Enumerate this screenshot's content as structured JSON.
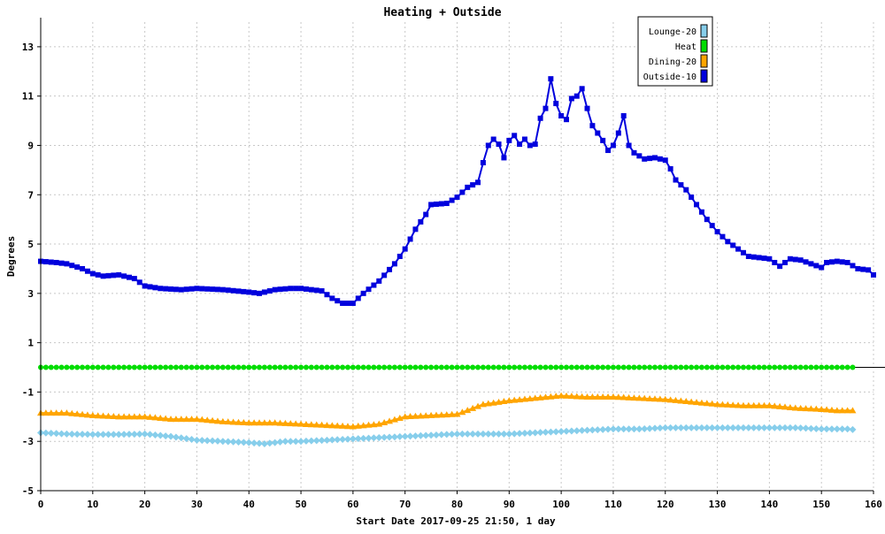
{
  "chart_data": {
    "type": "line",
    "title": "Heating + Outside",
    "xlabel": "Start Date 2017-09-25 21:50, 1 day",
    "ylabel": "Degrees",
    "xlim": [
      0,
      160
    ],
    "ylim": [
      -5,
      14
    ],
    "xticks": [
      0,
      10,
      20,
      30,
      40,
      50,
      60,
      70,
      80,
      90,
      100,
      110,
      120,
      130,
      140,
      150,
      160
    ],
    "yticks": [
      -5,
      -3,
      -1,
      1,
      3,
      5,
      7,
      9,
      11,
      13
    ],
    "grid": true,
    "zero_line": true,
    "legend_position": "top-right",
    "series": [
      {
        "name": "Lounge-20",
        "color": "#87ceeb",
        "marker": "diamond",
        "points": [
          [
            0,
            -2.65
          ],
          [
            5,
            -2.7
          ],
          [
            10,
            -2.72
          ],
          [
            15,
            -2.72
          ],
          [
            20,
            -2.7
          ],
          [
            25,
            -2.8
          ],
          [
            30,
            -2.95
          ],
          [
            35,
            -3.0
          ],
          [
            40,
            -3.05
          ],
          [
            43,
            -3.1
          ],
          [
            47,
            -3.0
          ],
          [
            50,
            -3.0
          ],
          [
            55,
            -2.95
          ],
          [
            60,
            -2.9
          ],
          [
            65,
            -2.85
          ],
          [
            70,
            -2.8
          ],
          [
            75,
            -2.75
          ],
          [
            80,
            -2.7
          ],
          [
            85,
            -2.7
          ],
          [
            90,
            -2.7
          ],
          [
            95,
            -2.65
          ],
          [
            100,
            -2.6
          ],
          [
            105,
            -2.55
          ],
          [
            110,
            -2.5
          ],
          [
            115,
            -2.5
          ],
          [
            120,
            -2.45
          ],
          [
            125,
            -2.45
          ],
          [
            130,
            -2.45
          ],
          [
            135,
            -2.45
          ],
          [
            140,
            -2.45
          ],
          [
            145,
            -2.45
          ],
          [
            150,
            -2.5
          ],
          [
            155,
            -2.5
          ],
          [
            156,
            -2.52
          ]
        ]
      },
      {
        "name": "Heat",
        "color": "#00dd00",
        "marker": "circle",
        "points": [
          [
            0,
            0
          ],
          [
            156,
            0
          ]
        ]
      },
      {
        "name": "Dining-20",
        "color": "#ffa500",
        "marker": "triangle",
        "points": [
          [
            0,
            -1.85
          ],
          [
            5,
            -1.85
          ],
          [
            10,
            -1.95
          ],
          [
            15,
            -2.0
          ],
          [
            20,
            -2.0
          ],
          [
            25,
            -2.1
          ],
          [
            30,
            -2.1
          ],
          [
            35,
            -2.2
          ],
          [
            40,
            -2.25
          ],
          [
            45,
            -2.25
          ],
          [
            50,
            -2.3
          ],
          [
            55,
            -2.35
          ],
          [
            60,
            -2.4
          ],
          [
            65,
            -2.3
          ],
          [
            70,
            -2.0
          ],
          [
            75,
            -1.95
          ],
          [
            80,
            -1.9
          ],
          [
            85,
            -1.5
          ],
          [
            90,
            -1.35
          ],
          [
            95,
            -1.25
          ],
          [
            100,
            -1.15
          ],
          [
            105,
            -1.2
          ],
          [
            110,
            -1.2
          ],
          [
            115,
            -1.25
          ],
          [
            120,
            -1.3
          ],
          [
            125,
            -1.4
          ],
          [
            130,
            -1.5
          ],
          [
            135,
            -1.55
          ],
          [
            140,
            -1.55
          ],
          [
            145,
            -1.65
          ],
          [
            150,
            -1.7
          ],
          [
            153,
            -1.75
          ],
          [
            156,
            -1.75
          ]
        ]
      },
      {
        "name": "Outside-10",
        "color": "#0000dd",
        "marker": "square",
        "points": [
          [
            0,
            4.3
          ],
          [
            3,
            4.25
          ],
          [
            5,
            4.2
          ],
          [
            8,
            4.0
          ],
          [
            10,
            3.8
          ],
          [
            12,
            3.7
          ],
          [
            15,
            3.75
          ],
          [
            18,
            3.6
          ],
          [
            20,
            3.3
          ],
          [
            23,
            3.2
          ],
          [
            27,
            3.15
          ],
          [
            30,
            3.2
          ],
          [
            35,
            3.15
          ],
          [
            40,
            3.05
          ],
          [
            42,
            3.0
          ],
          [
            45,
            3.15
          ],
          [
            48,
            3.2
          ],
          [
            50,
            3.2
          ],
          [
            54,
            3.1
          ],
          [
            56,
            2.8
          ],
          [
            58,
            2.6
          ],
          [
            60,
            2.6
          ],
          [
            62,
            3.0
          ],
          [
            65,
            3.5
          ],
          [
            68,
            4.2
          ],
          [
            70,
            4.8
          ],
          [
            72,
            5.6
          ],
          [
            74,
            6.2
          ],
          [
            75,
            6.6
          ],
          [
            78,
            6.65
          ],
          [
            80,
            6.9
          ],
          [
            82,
            7.3
          ],
          [
            84,
            7.5
          ],
          [
            85,
            8.3
          ],
          [
            86,
            9.0
          ],
          [
            87,
            9.25
          ],
          [
            88,
            9.05
          ],
          [
            89,
            8.5
          ],
          [
            90,
            9.2
          ],
          [
            91,
            9.4
          ],
          [
            92,
            9.05
          ],
          [
            93,
            9.25
          ],
          [
            94,
            9.0
          ],
          [
            95,
            9.05
          ],
          [
            96,
            10.1
          ],
          [
            97,
            10.5
          ],
          [
            98,
            11.7
          ],
          [
            99,
            10.7
          ],
          [
            100,
            10.2
          ],
          [
            101,
            10.05
          ],
          [
            102,
            10.9
          ],
          [
            103,
            11.0
          ],
          [
            104,
            11.3
          ],
          [
            105,
            10.5
          ],
          [
            106,
            9.8
          ],
          [
            107,
            9.5
          ],
          [
            108,
            9.2
          ],
          [
            109,
            8.8
          ],
          [
            110,
            9.0
          ],
          [
            111,
            9.5
          ],
          [
            112,
            10.2
          ],
          [
            113,
            9.0
          ],
          [
            114,
            8.7
          ],
          [
            116,
            8.45
          ],
          [
            118,
            8.5
          ],
          [
            120,
            8.4
          ],
          [
            121,
            8.05
          ],
          [
            122,
            7.6
          ],
          [
            124,
            7.2
          ],
          [
            126,
            6.6
          ],
          [
            128,
            6.0
          ],
          [
            130,
            5.5
          ],
          [
            132,
            5.1
          ],
          [
            134,
            4.8
          ],
          [
            136,
            4.5
          ],
          [
            138,
            4.45
          ],
          [
            140,
            4.4
          ],
          [
            142,
            4.1
          ],
          [
            144,
            4.4
          ],
          [
            146,
            4.35
          ],
          [
            148,
            4.2
          ],
          [
            150,
            4.05
          ],
          [
            151,
            4.25
          ],
          [
            153,
            4.3
          ],
          [
            155,
            4.25
          ],
          [
            157,
            4.0
          ],
          [
            159,
            3.95
          ],
          [
            160,
            3.75
          ]
        ]
      }
    ]
  }
}
